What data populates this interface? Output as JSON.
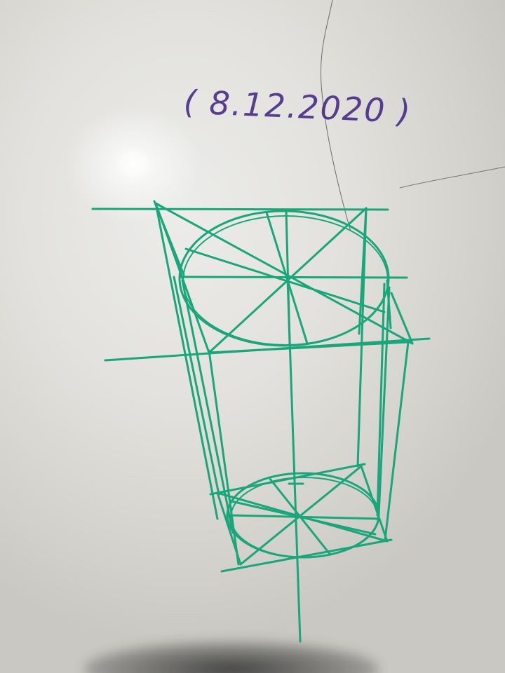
{
  "handwritten_date": "( 8.12.2020 )",
  "ink_color": "#1aa67a",
  "date_ink_color": "#4a2f88"
}
